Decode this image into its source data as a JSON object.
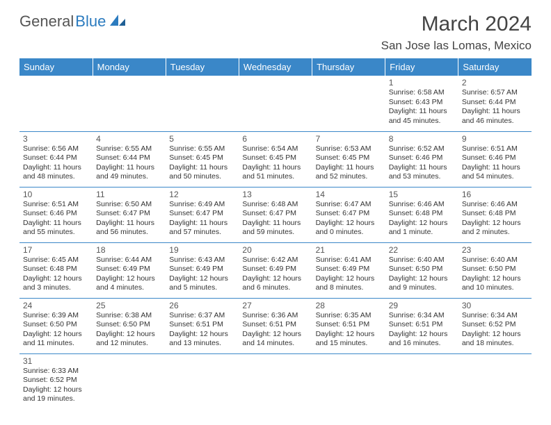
{
  "brand": {
    "part1": "General",
    "part2": "Blue"
  },
  "title": "March 2024",
  "location": "San Jose las Lomas, Mexico",
  "day_headers": [
    "Sunday",
    "Monday",
    "Tuesday",
    "Wednesday",
    "Thursday",
    "Friday",
    "Saturday"
  ],
  "colors": {
    "header_bg": "#3a87c8",
    "header_fg": "#ffffff",
    "row_border": "#3a87c8",
    "brand_gray": "#555555",
    "brand_blue": "#2b7bbf"
  },
  "weeks": [
    [
      null,
      null,
      null,
      null,
      null,
      {
        "n": "1",
        "sr": "Sunrise: 6:58 AM",
        "ss": "Sunset: 6:43 PM",
        "d1": "Daylight: 11 hours",
        "d2": "and 45 minutes."
      },
      {
        "n": "2",
        "sr": "Sunrise: 6:57 AM",
        "ss": "Sunset: 6:44 PM",
        "d1": "Daylight: 11 hours",
        "d2": "and 46 minutes."
      }
    ],
    [
      {
        "n": "3",
        "sr": "Sunrise: 6:56 AM",
        "ss": "Sunset: 6:44 PM",
        "d1": "Daylight: 11 hours",
        "d2": "and 48 minutes."
      },
      {
        "n": "4",
        "sr": "Sunrise: 6:55 AM",
        "ss": "Sunset: 6:44 PM",
        "d1": "Daylight: 11 hours",
        "d2": "and 49 minutes."
      },
      {
        "n": "5",
        "sr": "Sunrise: 6:55 AM",
        "ss": "Sunset: 6:45 PM",
        "d1": "Daylight: 11 hours",
        "d2": "and 50 minutes."
      },
      {
        "n": "6",
        "sr": "Sunrise: 6:54 AM",
        "ss": "Sunset: 6:45 PM",
        "d1": "Daylight: 11 hours",
        "d2": "and 51 minutes."
      },
      {
        "n": "7",
        "sr": "Sunrise: 6:53 AM",
        "ss": "Sunset: 6:45 PM",
        "d1": "Daylight: 11 hours",
        "d2": "and 52 minutes."
      },
      {
        "n": "8",
        "sr": "Sunrise: 6:52 AM",
        "ss": "Sunset: 6:46 PM",
        "d1": "Daylight: 11 hours",
        "d2": "and 53 minutes."
      },
      {
        "n": "9",
        "sr": "Sunrise: 6:51 AM",
        "ss": "Sunset: 6:46 PM",
        "d1": "Daylight: 11 hours",
        "d2": "and 54 minutes."
      }
    ],
    [
      {
        "n": "10",
        "sr": "Sunrise: 6:51 AM",
        "ss": "Sunset: 6:46 PM",
        "d1": "Daylight: 11 hours",
        "d2": "and 55 minutes."
      },
      {
        "n": "11",
        "sr": "Sunrise: 6:50 AM",
        "ss": "Sunset: 6:47 PM",
        "d1": "Daylight: 11 hours",
        "d2": "and 56 minutes."
      },
      {
        "n": "12",
        "sr": "Sunrise: 6:49 AM",
        "ss": "Sunset: 6:47 PM",
        "d1": "Daylight: 11 hours",
        "d2": "and 57 minutes."
      },
      {
        "n": "13",
        "sr": "Sunrise: 6:48 AM",
        "ss": "Sunset: 6:47 PM",
        "d1": "Daylight: 11 hours",
        "d2": "and 59 minutes."
      },
      {
        "n": "14",
        "sr": "Sunrise: 6:47 AM",
        "ss": "Sunset: 6:47 PM",
        "d1": "Daylight: 12 hours",
        "d2": "and 0 minutes."
      },
      {
        "n": "15",
        "sr": "Sunrise: 6:46 AM",
        "ss": "Sunset: 6:48 PM",
        "d1": "Daylight: 12 hours",
        "d2": "and 1 minute."
      },
      {
        "n": "16",
        "sr": "Sunrise: 6:46 AM",
        "ss": "Sunset: 6:48 PM",
        "d1": "Daylight: 12 hours",
        "d2": "and 2 minutes."
      }
    ],
    [
      {
        "n": "17",
        "sr": "Sunrise: 6:45 AM",
        "ss": "Sunset: 6:48 PM",
        "d1": "Daylight: 12 hours",
        "d2": "and 3 minutes."
      },
      {
        "n": "18",
        "sr": "Sunrise: 6:44 AM",
        "ss": "Sunset: 6:49 PM",
        "d1": "Daylight: 12 hours",
        "d2": "and 4 minutes."
      },
      {
        "n": "19",
        "sr": "Sunrise: 6:43 AM",
        "ss": "Sunset: 6:49 PM",
        "d1": "Daylight: 12 hours",
        "d2": "and 5 minutes."
      },
      {
        "n": "20",
        "sr": "Sunrise: 6:42 AM",
        "ss": "Sunset: 6:49 PM",
        "d1": "Daylight: 12 hours",
        "d2": "and 6 minutes."
      },
      {
        "n": "21",
        "sr": "Sunrise: 6:41 AM",
        "ss": "Sunset: 6:49 PM",
        "d1": "Daylight: 12 hours",
        "d2": "and 8 minutes."
      },
      {
        "n": "22",
        "sr": "Sunrise: 6:40 AM",
        "ss": "Sunset: 6:50 PM",
        "d1": "Daylight: 12 hours",
        "d2": "and 9 minutes."
      },
      {
        "n": "23",
        "sr": "Sunrise: 6:40 AM",
        "ss": "Sunset: 6:50 PM",
        "d1": "Daylight: 12 hours",
        "d2": "and 10 minutes."
      }
    ],
    [
      {
        "n": "24",
        "sr": "Sunrise: 6:39 AM",
        "ss": "Sunset: 6:50 PM",
        "d1": "Daylight: 12 hours",
        "d2": "and 11 minutes."
      },
      {
        "n": "25",
        "sr": "Sunrise: 6:38 AM",
        "ss": "Sunset: 6:50 PM",
        "d1": "Daylight: 12 hours",
        "d2": "and 12 minutes."
      },
      {
        "n": "26",
        "sr": "Sunrise: 6:37 AM",
        "ss": "Sunset: 6:51 PM",
        "d1": "Daylight: 12 hours",
        "d2": "and 13 minutes."
      },
      {
        "n": "27",
        "sr": "Sunrise: 6:36 AM",
        "ss": "Sunset: 6:51 PM",
        "d1": "Daylight: 12 hours",
        "d2": "and 14 minutes."
      },
      {
        "n": "28",
        "sr": "Sunrise: 6:35 AM",
        "ss": "Sunset: 6:51 PM",
        "d1": "Daylight: 12 hours",
        "d2": "and 15 minutes."
      },
      {
        "n": "29",
        "sr": "Sunrise: 6:34 AM",
        "ss": "Sunset: 6:51 PM",
        "d1": "Daylight: 12 hours",
        "d2": "and 16 minutes."
      },
      {
        "n": "30",
        "sr": "Sunrise: 6:34 AM",
        "ss": "Sunset: 6:52 PM",
        "d1": "Daylight: 12 hours",
        "d2": "and 18 minutes."
      }
    ],
    [
      {
        "n": "31",
        "sr": "Sunrise: 6:33 AM",
        "ss": "Sunset: 6:52 PM",
        "d1": "Daylight: 12 hours",
        "d2": "and 19 minutes."
      },
      null,
      null,
      null,
      null,
      null,
      null
    ]
  ]
}
